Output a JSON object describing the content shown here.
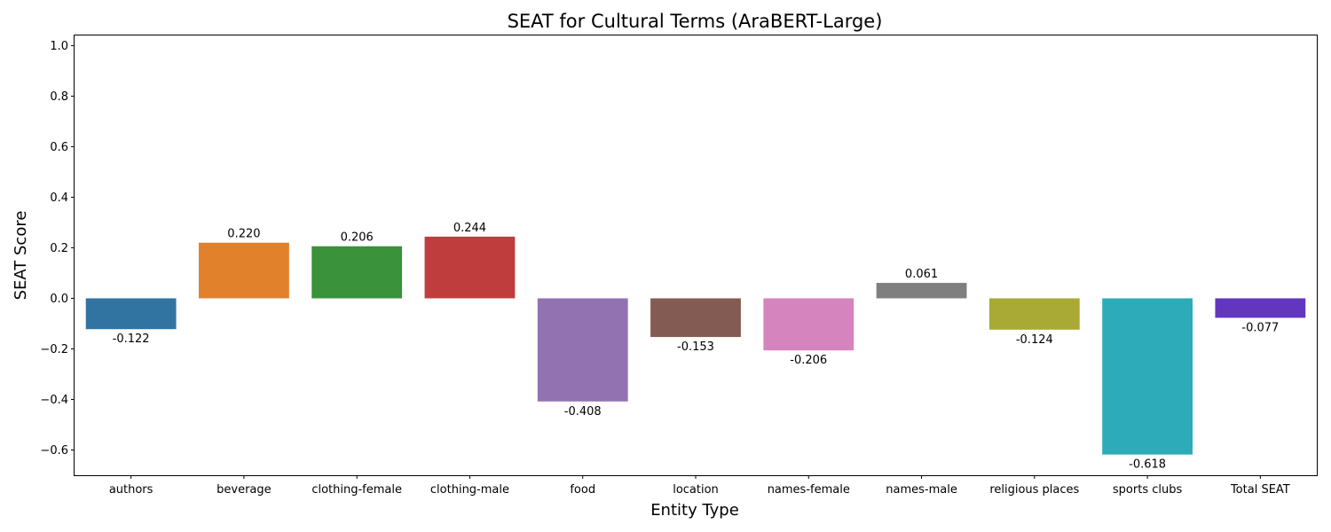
{
  "chart_data": {
    "type": "bar",
    "title": "SEAT for Cultural Terms (AraBERT-Large)",
    "xlabel": "Entity Type",
    "ylabel": "SEAT Score",
    "ylim": [
      -0.7,
      1.04
    ],
    "yticks": [
      1.0,
      0.8,
      0.6,
      0.4,
      0.2,
      0.0,
      -0.2,
      -0.4,
      -0.6
    ],
    "ytick_labels": [
      "1.0",
      "0.8",
      "0.6",
      "0.4",
      "0.2",
      "0.0",
      "−0.2",
      "−0.4",
      "−0.6"
    ],
    "categories": [
      "authors",
      "beverage",
      "clothing-female",
      "clothing-male",
      "food",
      "location",
      "names-female",
      "names-male",
      "religious places",
      "sports clubs",
      "Total SEAT"
    ],
    "values": [
      -0.122,
      0.22,
      0.206,
      0.244,
      -0.408,
      -0.153,
      -0.206,
      0.061,
      -0.124,
      -0.618,
      -0.077
    ],
    "value_labels": [
      "-0.122",
      "0.220",
      "0.206",
      "0.244",
      "-0.408",
      "-0.153",
      "-0.206",
      "0.061",
      "-0.124",
      "-0.618",
      "-0.077"
    ],
    "colors": [
      "#3274a1",
      "#e1812c",
      "#3a923a",
      "#c03d3e",
      "#9372b2",
      "#845b53",
      "#d684bd",
      "#7f7f7f",
      "#a9aa35",
      "#2eabb8",
      "#6236bf"
    ],
    "grid": false,
    "legend": false
  }
}
